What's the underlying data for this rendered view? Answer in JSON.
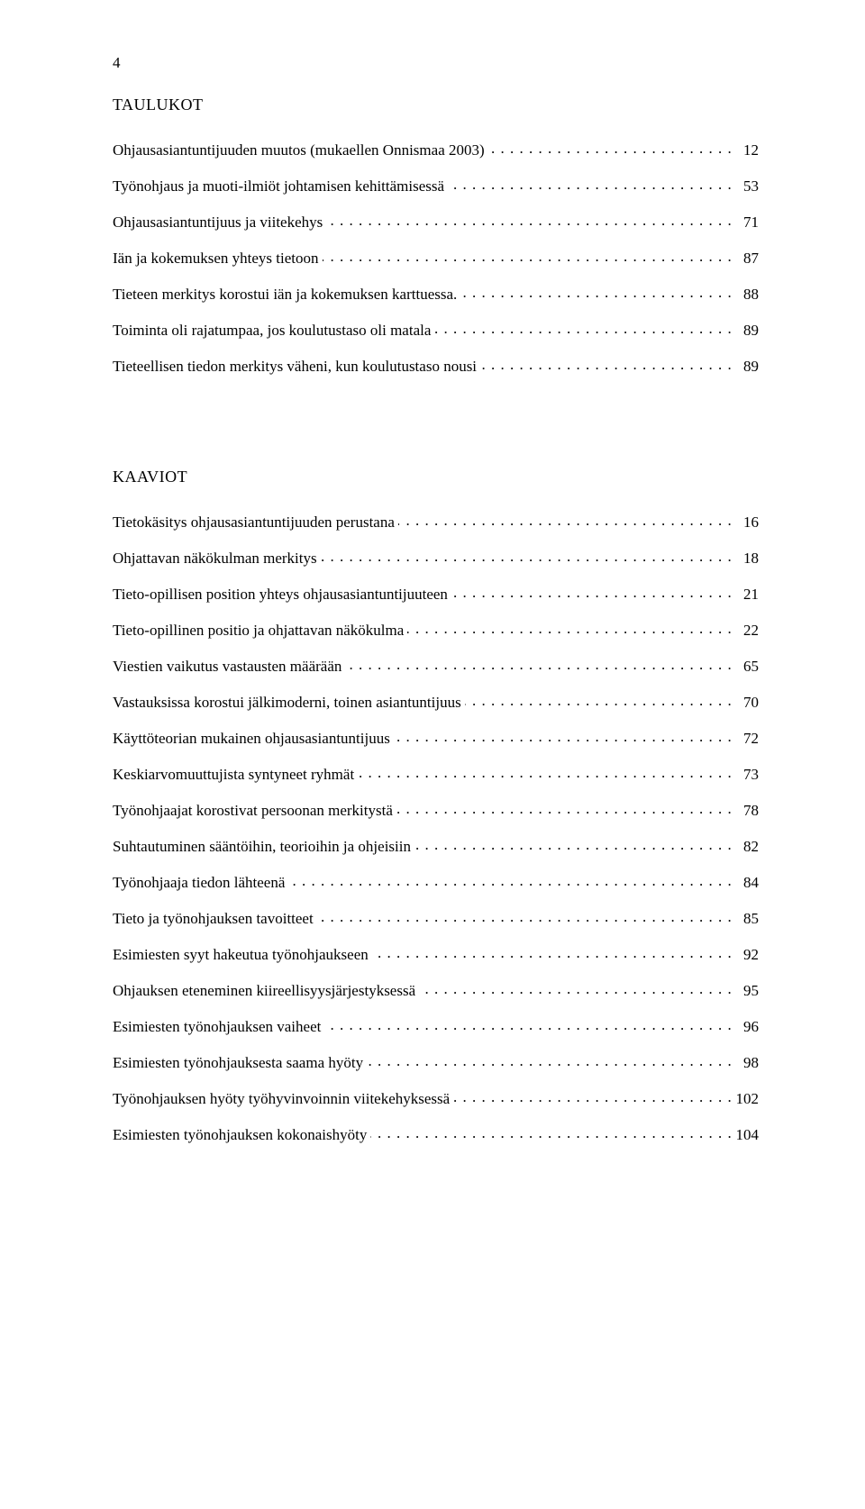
{
  "page_number": "4",
  "sections": [
    {
      "heading": "TAULUKOT",
      "entries": [
        {
          "label1": "Ohjausasiantuntijuuden muutos (mukaellen Onnismaa 2003)",
          "label2": null,
          "page": "12"
        },
        {
          "label1": "Työnohjaus ja muoti-ilmiöt johtamisen kehittämisessä",
          "label2": null,
          "page": "53"
        },
        {
          "label1": "Ohjausasiantuntijuus ja viitekehys",
          "label2": null,
          "page": "71"
        },
        {
          "label1": "Iän ja kokemuksen yhteys tietoon",
          "label2": null,
          "page": "87"
        },
        {
          "label1": "Tieteen merkitys korostui iän ja kokemuksen karttuessa.",
          "label2": null,
          "page": "88"
        },
        {
          "label1": "Toiminta oli rajatumpaa, jos koulutustaso oli matala",
          "label2": null,
          "page": "89"
        },
        {
          "label1": "Tieteellisen tiedon merkitys väheni, kun koulutustaso nousi",
          "label2": null,
          "page": "89"
        }
      ]
    },
    {
      "heading": "KAAVIOT",
      "entries": [
        {
          "label1": "Tietokäsitys ohjausasiantuntijuuden perustana",
          "label2": null,
          "page": "16"
        },
        {
          "label1": "Ohjattavan näkökulman merkitys",
          "label2": null,
          "page": "18"
        },
        {
          "label1": "Tieto-opillisen position yhteys ohjausasiantuntijuuteen",
          "label2": null,
          "page": "21"
        },
        {
          "label1": "Tieto-opillinen positio ja ohjattavan näkökulma",
          "label2": null,
          "page": "22"
        },
        {
          "label1": "Viestien vaikutus vastausten määrään",
          "label2": null,
          "page": "65"
        },
        {
          "label1": "Vastauksissa korostui jälkimoderni, toinen asiantuntijuus",
          "label2": null,
          "page": "70"
        },
        {
          "label1": "Käyttöteorian mukainen ohjausasiantuntijuus",
          "label2": null,
          "page": "72"
        },
        {
          "label1": "Keskiarvomuuttujista syntyneet ryhmät",
          "label2": null,
          "page": "73"
        },
        {
          "label1": "Työnohjaajat korostivat persoonan merkitystä",
          "label2": null,
          "page": "78"
        },
        {
          "label1": "Suhtautuminen sääntöihin, teorioihin ja ohjeisiin",
          "label2": null,
          "page": "82"
        },
        {
          "label1": "Työnohjaaja tiedon lähteenä",
          "label2": null,
          "page": "84"
        },
        {
          "label1": "Tieto ja työnohjauksen tavoitteet",
          "label2": null,
          "page": "85"
        },
        {
          "label1": "Esimiesten syyt hakeutua työnohjaukseen",
          "label2": null,
          "page": "92"
        },
        {
          "label1": "Ohjauksen eteneminen kiireellisyysjärjestyksessä",
          "label2": null,
          "page": "95"
        },
        {
          "label1": "Esimiesten työnohjauksen vaiheet",
          "label2": null,
          "page": "96"
        },
        {
          "label1": "Esimiesten työnohjauksesta saama hyöty",
          "label2": null,
          "page": "98"
        },
        {
          "label1": "Työnohjauksen hyöty työhyvinvoinnin viitekehyksessä",
          "label2": null,
          "page": "102"
        },
        {
          "label1": "Esimiesten työnohjauksen kokonaishyöty",
          "label2": null,
          "page": "104"
        }
      ]
    }
  ]
}
